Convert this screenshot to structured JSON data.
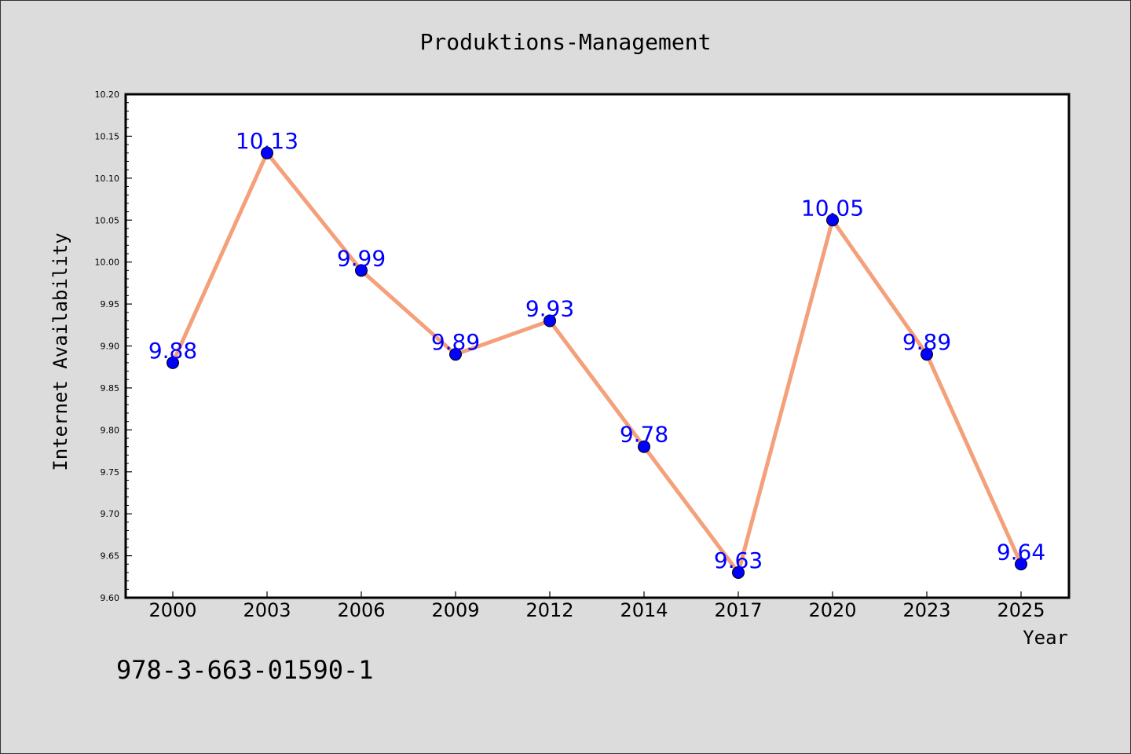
{
  "title": "Produktions-Management",
  "footer_text": "978-3-663-01590-1",
  "chart_data": {
    "type": "line",
    "xlabel": "Year",
    "ylabel": "Internet Availability",
    "categories": [
      "2000",
      "2003",
      "2006",
      "2009",
      "2012",
      "2014",
      "2017",
      "2020",
      "2023",
      "2025"
    ],
    "series": [
      {
        "values": [
          9.88,
          10.13,
          9.99,
          9.89,
          9.93,
          9.78,
          9.63,
          10.05,
          9.89,
          9.64
        ],
        "data_labels": [
          "9.88",
          "10.13",
          "9.99",
          "9.89",
          "9.93",
          "9.78",
          "9.63",
          "10.05",
          "9.89",
          "9.64"
        ],
        "line_color": "#f4a07a",
        "marker_color": "#0000ff",
        "label_color": "#0000ff"
      }
    ],
    "ylim": [
      9.6,
      10.2
    ],
    "yticks": [
      "9.60",
      "9.65",
      "9.70",
      "9.75",
      "9.80",
      "9.85",
      "9.90",
      "9.95",
      "10.00",
      "10.05",
      "10.10",
      "10.15",
      "10.20"
    ],
    "grid": false,
    "background_color": "#dcdcdc",
    "plot_background": "#ffffff"
  }
}
